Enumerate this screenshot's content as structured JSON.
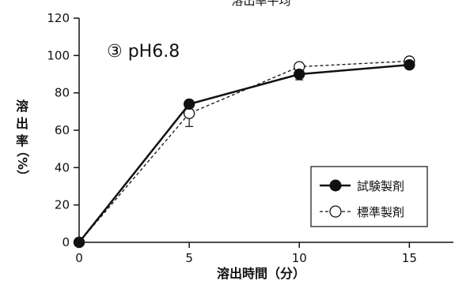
{
  "chart_data": {
    "type": "line",
    "top_caption": "溶出率平均",
    "panel_label": "③ pH6.8",
    "xlabel": "溶出時間（分）",
    "ylabel_chars": [
      "溶",
      "出",
      "率",
      "（%）"
    ],
    "x": [
      0,
      5,
      10,
      15
    ],
    "xticks": [
      0,
      5,
      10,
      15
    ],
    "yticks": [
      0,
      20,
      40,
      60,
      80,
      100,
      120
    ],
    "xlim": [
      0,
      17
    ],
    "ylim": [
      0,
      120
    ],
    "series": [
      {
        "name": "試験製剤",
        "values": [
          0,
          74,
          90,
          95
        ],
        "error": [
          0,
          0,
          3,
          0
        ],
        "line_style": "solid",
        "marker": "filled-circle",
        "color": "#111111"
      },
      {
        "name": "標準製剤",
        "values": [
          0,
          69,
          94,
          97
        ],
        "error": [
          0,
          7,
          0,
          0
        ],
        "line_style": "dashed",
        "marker": "open-circle",
        "color": "#111111"
      }
    ],
    "grid": false,
    "legend_position": "bottom-right"
  }
}
